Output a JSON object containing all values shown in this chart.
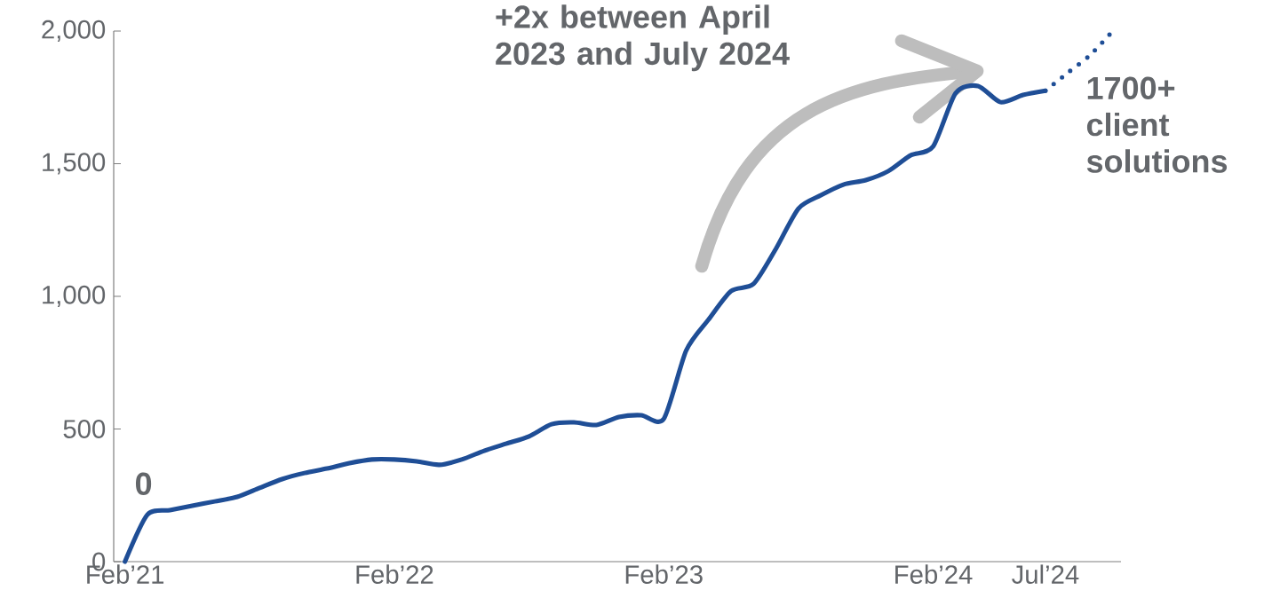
{
  "chart_data": {
    "type": "line",
    "x": [
      "2021-02-01",
      "2021-03-01",
      "2021-04-01",
      "2021-05-01",
      "2021-06-01",
      "2021-07-01",
      "2021-08-01",
      "2021-09-01",
      "2021-10-01",
      "2021-11-01",
      "2021-12-01",
      "2022-01-01",
      "2022-02-01",
      "2022-03-01",
      "2022-04-01",
      "2022-05-01",
      "2022-06-01",
      "2022-07-01",
      "2022-08-01",
      "2022-09-01",
      "2022-10-01",
      "2022-11-01",
      "2022-12-01",
      "2023-01-01",
      "2023-02-01",
      "2023-03-01",
      "2023-04-01",
      "2023-05-01",
      "2023-06-01",
      "2023-07-01",
      "2023-08-01",
      "2023-09-01",
      "2023-10-01",
      "2023-11-01",
      "2023-12-01",
      "2024-01-01",
      "2024-02-01",
      "2024-03-01",
      "2024-04-01",
      "2024-05-01",
      "2024-06-01",
      "2024-07-01"
    ],
    "series": [
      {
        "color": "#1f4e96",
        "line_style": "solid",
        "values": [
          0,
          177,
          194,
          211,
          227,
          244,
          278,
          311,
          334,
          351,
          371,
          385,
          385,
          378,
          365,
          385,
          418,
          445,
          472,
          518,
          525,
          515,
          545,
          552,
          538,
          796,
          913,
          1020,
          1047,
          1180,
          1331,
          1381,
          1421,
          1438,
          1472,
          1532,
          1565,
          1766,
          1793,
          1732,
          1759,
          1775
        ]
      },
      {
        "color": "#1f4e96",
        "line_style": "dotted",
        "x": [
          "2024-07-01",
          "2024-08-01",
          "2024-09-01",
          "2024-10-01"
        ],
        "values": [
          1775,
          1843,
          1910,
          2000
        ]
      }
    ],
    "xlim": [
      "2021-01-16",
      "2024-10-12"
    ],
    "xticks": [
      {
        "value": "2021-02-01",
        "label": "Feb’21"
      },
      {
        "value": "2022-02-01",
        "label": "Feb’22"
      },
      {
        "value": "2023-02-01",
        "label": "Feb’23"
      },
      {
        "value": "2024-02-01",
        "label": "Feb’24"
      },
      {
        "value": "2024-07-01",
        "label": "Jul’24"
      }
    ],
    "ylim": [
      0,
      2000
    ],
    "yticks": [
      0,
      500,
      {
        "value": 1000,
        "label": "1,000"
      },
      {
        "value": 1500,
        "label": "1,500"
      },
      {
        "value": 2000,
        "label": "2,000"
      }
    ],
    "grid": false,
    "annotations": [
      {
        "text": "0",
        "x": "2021-02-01",
        "y": 0
      },
      "+2x between April 2023 and July 2024",
      {
        "text": "1700+ client solutions",
        "x": "2024-07-01",
        "y": 1775
      }
    ]
  }
}
